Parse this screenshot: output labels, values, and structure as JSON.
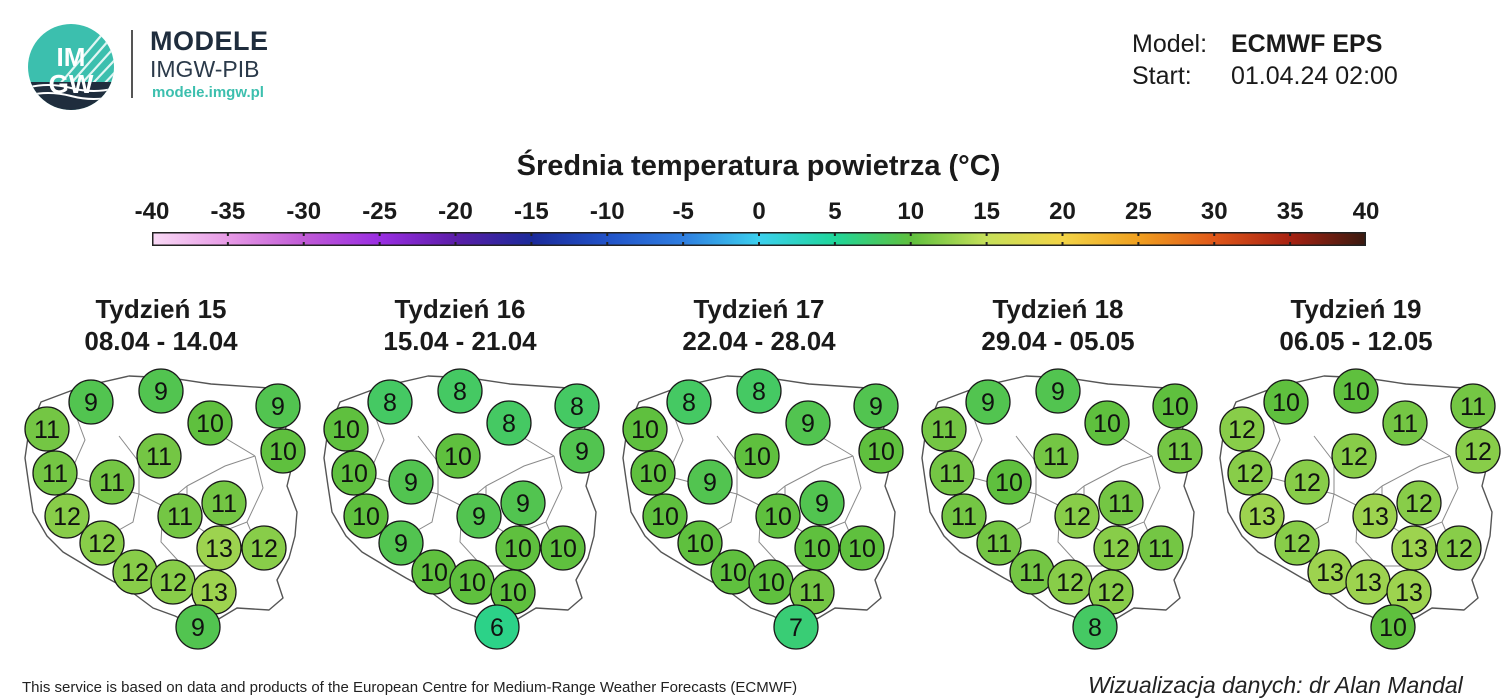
{
  "brand": {
    "logo_text_top": "IM",
    "logo_text_bottom": "GW",
    "title": "MODELE",
    "subtitle": "IMGW-PIB",
    "url": "modele.imgw.pl",
    "accent_color": "#3cbfae",
    "icon": "imgw-logo-icon"
  },
  "model_info": {
    "model_label": "Model:",
    "model_value": "ECMWF EPS",
    "start_label": "Start:",
    "start_value": "01.04.24 02:00"
  },
  "scale": {
    "title": "Średnia temperatura powietrza (°C)",
    "ticks": [
      "-40",
      "-35",
      "-30",
      "-25",
      "-20",
      "-15",
      "-10",
      "-5",
      "0",
      "5",
      "10",
      "15",
      "20",
      "25",
      "30",
      "35",
      "40"
    ],
    "range": [
      -40,
      40
    ],
    "stops": [
      {
        "v": -40,
        "c": "#f9d9f5"
      },
      {
        "v": -35,
        "c": "#e79ae6"
      },
      {
        "v": -30,
        "c": "#c05ad6"
      },
      {
        "v": -25,
        "c": "#9a2ee2"
      },
      {
        "v": -20,
        "c": "#5b1ea8"
      },
      {
        "v": -15,
        "c": "#1b2a9a"
      },
      {
        "v": -10,
        "c": "#2253c8"
      },
      {
        "v": -5,
        "c": "#2f7ee0"
      },
      {
        "v": 0,
        "c": "#3cd0ee"
      },
      {
        "v": 5,
        "c": "#1fd69a"
      },
      {
        "v": 10,
        "c": "#5fc03e"
      },
      {
        "v": 15,
        "c": "#c6e05a"
      },
      {
        "v": 20,
        "c": "#f2d447"
      },
      {
        "v": 25,
        "c": "#f0a020"
      },
      {
        "v": 30,
        "c": "#e0581a"
      },
      {
        "v": 35,
        "c": "#a82212"
      },
      {
        "v": 40,
        "c": "#3a1a10"
      }
    ]
  },
  "weeks": [
    {
      "title": "Tydzień 15",
      "dates": "08.04 - 14.04",
      "values": [
        11,
        9,
        9,
        10,
        9,
        10,
        11,
        11,
        11,
        12,
        11,
        11,
        12,
        12,
        13,
        12,
        12,
        13,
        9
      ]
    },
    {
      "title": "Tydzień 16",
      "dates": "15.04 - 21.04",
      "values": [
        10,
        8,
        8,
        8,
        8,
        9,
        10,
        10,
        9,
        10,
        9,
        9,
        10,
        9,
        10,
        10,
        10,
        10,
        6
      ]
    },
    {
      "title": "Tydzień 17",
      "dates": "22.04 - 28.04",
      "values": [
        10,
        8,
        8,
        9,
        9,
        10,
        10,
        10,
        9,
        10,
        9,
        10,
        10,
        10,
        10,
        10,
        10,
        11,
        7
      ]
    },
    {
      "title": "Tydzień 18",
      "dates": "29.04 - 05.05",
      "values": [
        11,
        9,
        9,
        10,
        10,
        11,
        11,
        11,
        10,
        11,
        11,
        12,
        11,
        11,
        12,
        11,
        12,
        12,
        8
      ]
    },
    {
      "title": "Tydzień 19",
      "dates": "06.05 - 12.05",
      "values": [
        12,
        10,
        10,
        11,
        11,
        12,
        12,
        12,
        12,
        13,
        12,
        13,
        12,
        12,
        13,
        13,
        13,
        13,
        10
      ]
    }
  ],
  "footer": {
    "disclaimer": "This service is based on data and products of the European Centre for Medium-Range Weather Forecasts (ECMWF)",
    "credit": "Wizualizacja danych: dr Alan Mandal"
  }
}
